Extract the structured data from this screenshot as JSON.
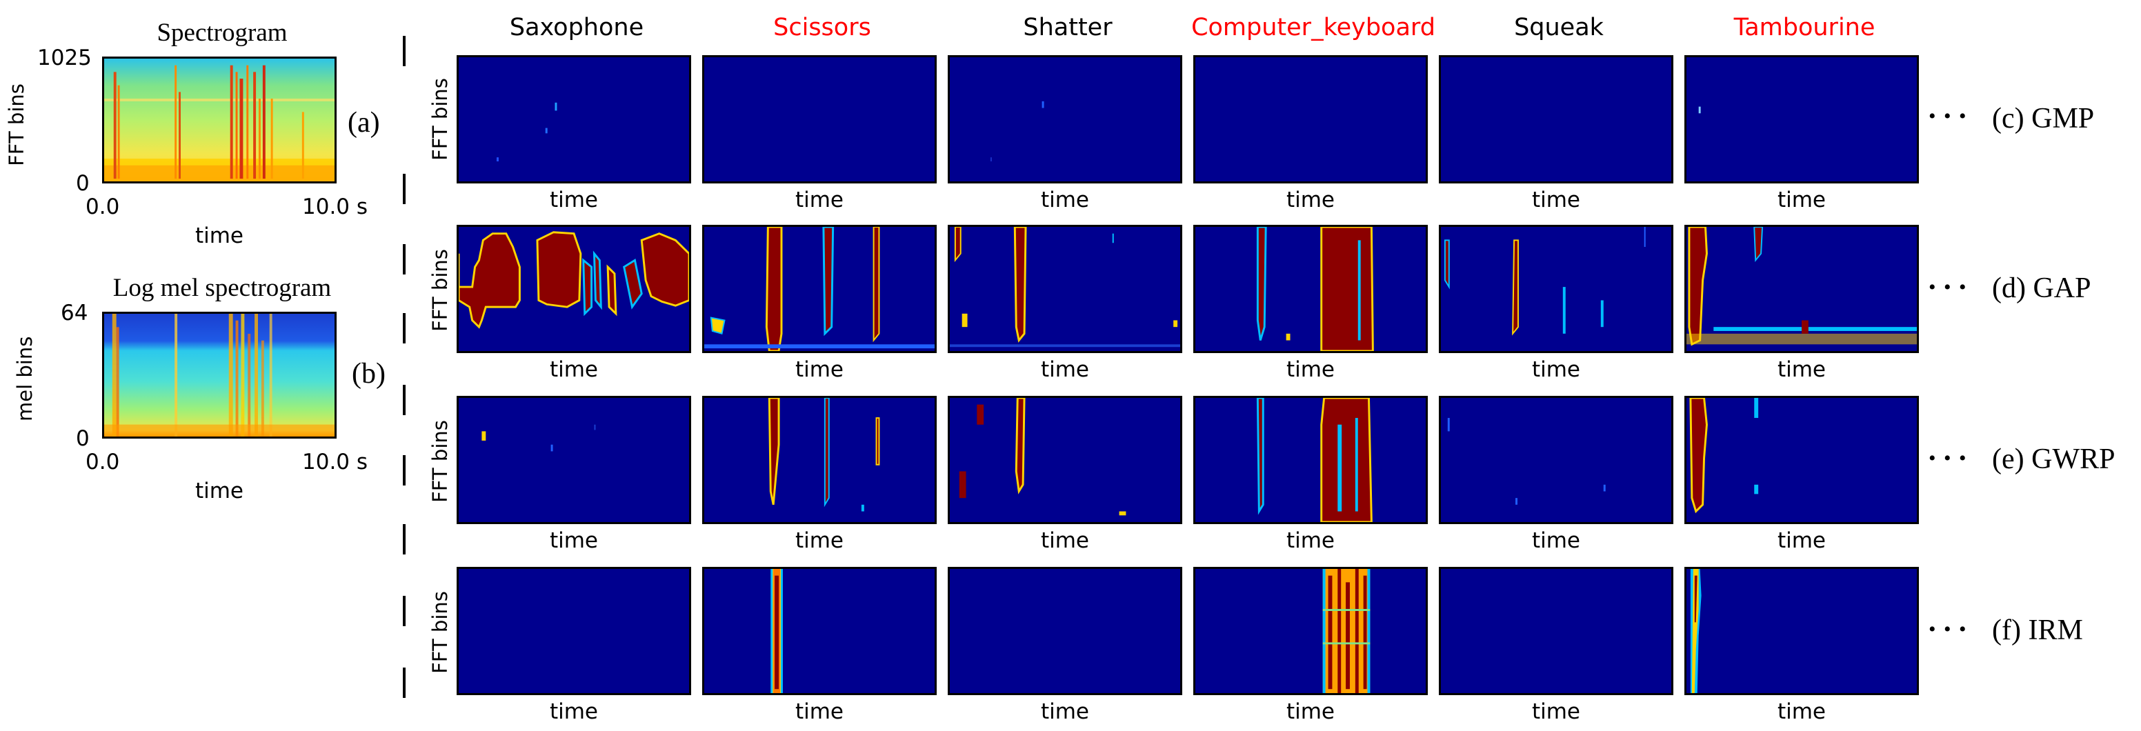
{
  "left_plots": {
    "spectrogram": {
      "title": "Spectrogram",
      "ylabel": "FFT bins",
      "xlabel": "time",
      "y_ticks": [
        "1025",
        "0"
      ],
      "x_ticks": [
        "0.0",
        "10.0 s"
      ],
      "panel_label": "(a)"
    },
    "log_mel": {
      "title": "Log mel spectrogram",
      "ylabel": "mel bins",
      "xlabel": "time",
      "y_ticks": [
        "64",
        "0"
      ],
      "x_ticks": [
        "0.0",
        "10.0 s"
      ],
      "panel_label": "(b)"
    }
  },
  "columns": [
    {
      "name": "Saxophone",
      "color": "#000000"
    },
    {
      "name": "Scissors",
      "color": "#ff0000"
    },
    {
      "name": "Shatter",
      "color": "#000000"
    },
    {
      "name": "Computer_keyboard",
      "color": "#ff0000"
    },
    {
      "name": "Squeak",
      "color": "#000000"
    },
    {
      "name": "Tambourine",
      "color": "#ff0000"
    }
  ],
  "rows": [
    {
      "label": "(c) GMP"
    },
    {
      "label": "(d) GAP"
    },
    {
      "label": "(e) GWRP"
    },
    {
      "label": "(f) IRM"
    }
  ],
  "grid_ylabel": "FFT bins",
  "grid_xlabel": "time",
  "ellipsis": "• • •",
  "colors": {
    "background_blue": "#00008f",
    "activation_red": "#8b0000",
    "activation_yellow": "#ffd400",
    "activation_cyan": "#00bfff"
  }
}
